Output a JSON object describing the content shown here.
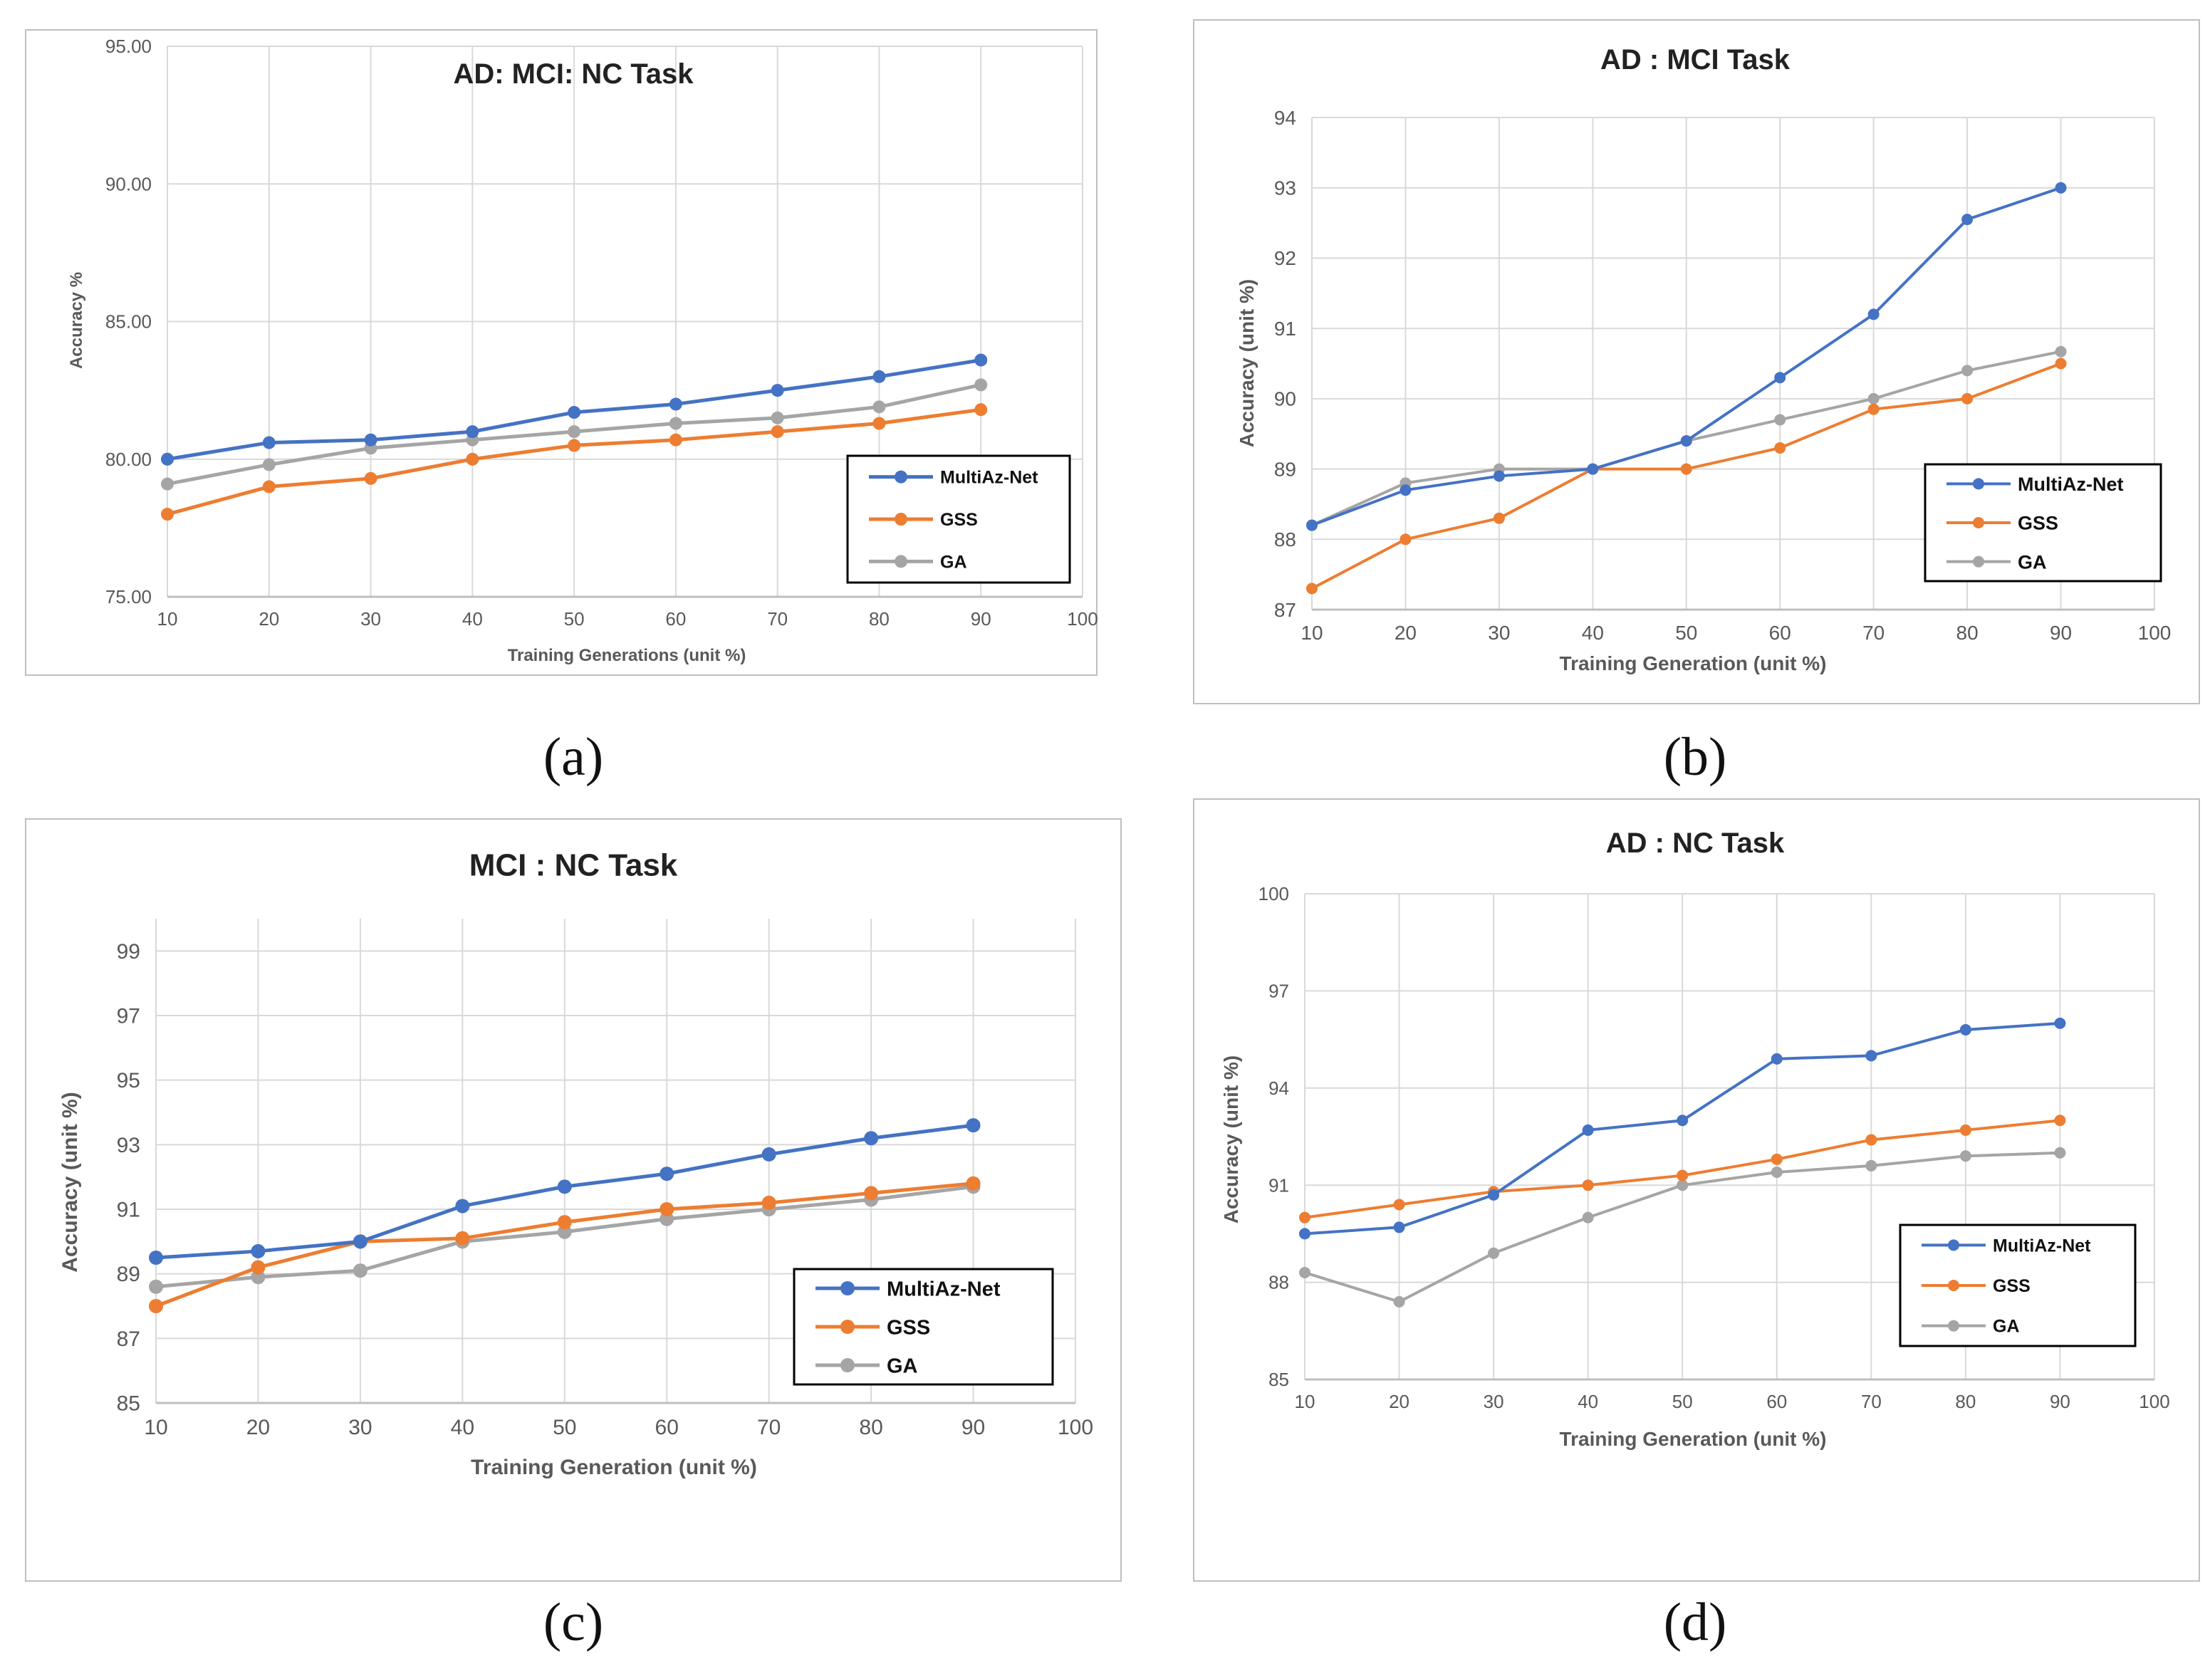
{
  "colors": {
    "MultiAz-Net": "#4472c4",
    "GSS": "#ed7d31",
    "GA": "#a5a5a5",
    "frame": "#bfbfbf",
    "grid": "#d9d9d9"
  },
  "chart_data": [
    {
      "type": "line",
      "panel_label": "(a)",
      "title": "AD: MCI: NC Task",
      "xlabel": "Training Generations (unit %)",
      "ylabel": "Accuracy %",
      "xlim": [
        10,
        100
      ],
      "xticks": [
        "10",
        "20",
        "30",
        "40",
        "50",
        "60",
        "70",
        "80",
        "90",
        "100"
      ],
      "ylim": [
        75,
        95
      ],
      "yticks": [
        "75.00",
        "80.00",
        "85.00",
        "90.00",
        "95.00"
      ],
      "x": [
        10,
        20,
        30,
        40,
        50,
        60,
        70,
        80,
        90
      ],
      "series": [
        {
          "name": "MultiAz-Net",
          "values": [
            80.0,
            80.6,
            80.7,
            81.0,
            81.7,
            82.0,
            82.5,
            83.0,
            83.6
          ]
        },
        {
          "name": "GSS",
          "values": [
            78.0,
            79.0,
            79.3,
            80.0,
            80.5,
            80.7,
            81.0,
            81.3,
            81.8
          ]
        },
        {
          "name": "GA",
          "values": [
            79.1,
            79.8,
            80.4,
            80.7,
            81.0,
            81.3,
            81.5,
            81.9,
            82.7
          ]
        }
      ]
    },
    {
      "type": "line",
      "panel_label": "(b)",
      "title": "AD : MCI Task",
      "xlabel": "Training Generation (unit %)",
      "ylabel": "Accuracy (unit %)",
      "xlim": [
        10,
        100
      ],
      "xticks": [
        "10",
        "20",
        "30",
        "40",
        "50",
        "60",
        "70",
        "80",
        "90",
        "100"
      ],
      "ylim": [
        87,
        94
      ],
      "yticks": [
        "87",
        "88",
        "89",
        "90",
        "91",
        "92",
        "93",
        "94"
      ],
      "x": [
        10,
        20,
        30,
        40,
        50,
        60,
        70,
        80,
        90
      ],
      "series": [
        {
          "name": "MultiAz-Net",
          "values": [
            88.2,
            88.7,
            88.9,
            89.0,
            89.4,
            90.3,
            91.2,
            92.55,
            93.0
          ]
        },
        {
          "name": "GSS",
          "values": [
            87.3,
            88.0,
            88.3,
            89.0,
            89.0,
            89.3,
            89.85,
            90.0,
            90.5
          ]
        },
        {
          "name": "GA",
          "values": [
            88.2,
            88.8,
            89.0,
            89.0,
            89.4,
            89.7,
            90.0,
            90.4,
            90.67
          ]
        }
      ]
    },
    {
      "type": "line",
      "panel_label": "(c)",
      "title": "MCI : NC Task",
      "xlabel": "Training Generation (unit %)",
      "ylabel": "Accuracy (unit %)",
      "xlim": [
        10,
        100
      ],
      "xticks": [
        "10",
        "20",
        "30",
        "40",
        "50",
        "60",
        "70",
        "80",
        "90",
        "100"
      ],
      "ylim": [
        85,
        100
      ],
      "yticks": [
        "85",
        "87",
        "89",
        "91",
        "93",
        "95",
        "97",
        "99"
      ],
      "x": [
        10,
        20,
        30,
        40,
        50,
        60,
        70,
        80,
        90
      ],
      "series": [
        {
          "name": "MultiAz-Net",
          "values": [
            89.5,
            89.7,
            90.0,
            91.1,
            91.7,
            92.1,
            92.7,
            93.2,
            93.6
          ]
        },
        {
          "name": "GSS",
          "values": [
            88.0,
            89.2,
            90.0,
            90.1,
            90.6,
            91.0,
            91.2,
            91.5,
            91.8
          ]
        },
        {
          "name": "GA",
          "values": [
            88.6,
            88.9,
            89.1,
            90.0,
            90.3,
            90.7,
            91.0,
            91.3,
            91.7
          ]
        }
      ]
    },
    {
      "type": "line",
      "panel_label": "(d)",
      "title": "AD : NC  Task",
      "xlabel": "Training Generation (unit %)",
      "ylabel": "Accuracy (unit %)",
      "xlim": [
        10,
        100
      ],
      "xticks": [
        "10",
        "20",
        "30",
        "40",
        "50",
        "60",
        "70",
        "80",
        "90",
        "100"
      ],
      "ylim": [
        85,
        100
      ],
      "yticks": [
        "85",
        "88",
        "91",
        "94",
        "97",
        "100"
      ],
      "x": [
        10,
        20,
        30,
        40,
        50,
        60,
        70,
        80,
        90
      ],
      "series": [
        {
          "name": "MultiAz-Net",
          "values": [
            89.5,
            89.7,
            90.7,
            92.7,
            93.0,
            94.9,
            95.0,
            95.8,
            96.0
          ]
        },
        {
          "name": "GSS",
          "values": [
            90.0,
            90.4,
            90.8,
            91.0,
            91.3,
            91.8,
            92.4,
            92.7,
            93.0
          ]
        },
        {
          "name": "GA",
          "values": [
            88.3,
            87.4,
            88.9,
            90.0,
            91.0,
            91.4,
            91.6,
            91.9,
            92.0
          ]
        }
      ]
    }
  ]
}
